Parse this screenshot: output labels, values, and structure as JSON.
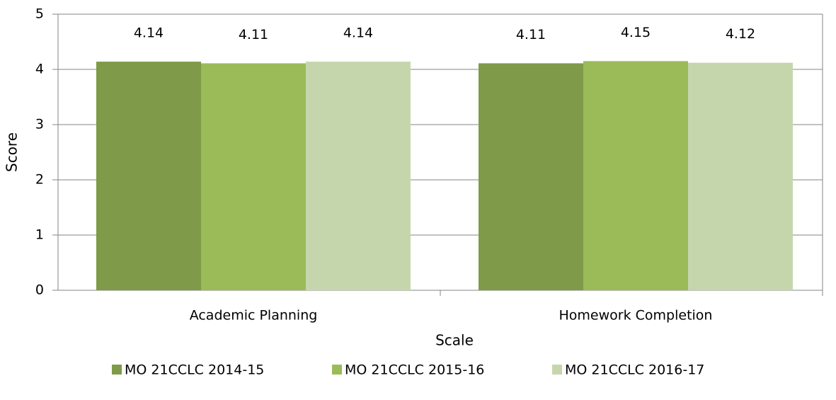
{
  "chart_data": {
    "type": "bar",
    "x_label": "Scale",
    "y_label": "Score",
    "categories": [
      "Academic Planning",
      "Homework Completion"
    ],
    "series": [
      {
        "name": "MO 21CCLC 2014-15",
        "color": "#7f9a48",
        "values": [
          4.14,
          4.11
        ]
      },
      {
        "name": "MO 21CCLC 2015-16",
        "color": "#9bbb59",
        "values": [
          4.11,
          4.15
        ]
      },
      {
        "name": "MO 21CCLC 2016-17",
        "color": "#c6d6ac",
        "values": [
          4.14,
          4.12
        ]
      }
    ],
    "ylim": [
      0,
      5
    ],
    "yticks": [
      0,
      1,
      2,
      3,
      4,
      5
    ],
    "grid": true,
    "legend": "bottom"
  }
}
